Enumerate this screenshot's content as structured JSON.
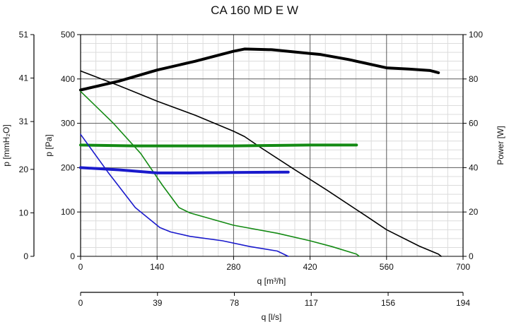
{
  "chart_data": {
    "type": "line",
    "title": "CA 160 MD E W",
    "x_primary": {
      "label": "q [m³/h]",
      "range": [
        0,
        700
      ],
      "ticks": [
        0,
        140,
        280,
        420,
        560,
        700
      ]
    },
    "x_secondary": {
      "label": "q [l/s]",
      "range": [
        0,
        194
      ],
      "ticks": [
        0,
        39,
        78,
        117,
        156,
        194
      ]
    },
    "y_pressure_pa": {
      "label": "p [Pa]",
      "range": [
        0,
        500
      ],
      "ticks": [
        0,
        100,
        200,
        300,
        400,
        500
      ]
    },
    "y_pressure_mmh2o": {
      "label": "p [mmH₂O]",
      "range": [
        0,
        51
      ],
      "ticks": [
        0,
        10,
        20,
        31,
        41,
        51
      ],
      "tick_labels": [
        "0",
        "10",
        "20",
        "31",
        "41",
        "51"
      ]
    },
    "y_power": {
      "label": "Power [W]",
      "range": [
        0,
        100
      ],
      "ticks": [
        0,
        20,
        40,
        60,
        80,
        100
      ]
    },
    "grid": true,
    "series": [
      {
        "name": "pressure-high",
        "axis": "pa",
        "color": "#000000",
        "width": 1.6,
        "x": [
          0,
          70,
          140,
          210,
          280,
          300,
          330,
          390,
          450,
          520,
          560,
          620,
          655,
          660
        ],
        "y": [
          418,
          385,
          350,
          318,
          282,
          270,
          245,
          197,
          150,
          93,
          60,
          23,
          5,
          0
        ]
      },
      {
        "name": "power-high",
        "axis": "power",
        "color": "#000000",
        "width": 4,
        "x": [
          0,
          70,
          140,
          210,
          280,
          300,
          330,
          350,
          420,
          440,
          490,
          560,
          600,
          640,
          655
        ],
        "y": [
          75,
          79,
          84,
          88,
          92.5,
          93.5,
          93.3,
          93.2,
          91.5,
          91,
          88.8,
          85,
          84.5,
          83.8,
          82.8
        ]
      },
      {
        "name": "pressure-mid",
        "axis": "pa",
        "color": "#138a13",
        "width": 1.6,
        "x": [
          0,
          60,
          110,
          150,
          180,
          200,
          280,
          360,
          420,
          460,
          505,
          510
        ],
        "y": [
          372,
          300,
          232,
          160,
          110,
          98,
          70,
          52,
          35,
          22,
          5,
          0
        ]
      },
      {
        "name": "power-mid",
        "axis": "power",
        "color": "#138a13",
        "width": 4,
        "x": [
          0,
          100,
          200,
          280,
          350,
          420,
          505
        ],
        "y": [
          50.2,
          49.8,
          49.8,
          49.8,
          50,
          50.2,
          50.2
        ]
      },
      {
        "name": "pressure-low",
        "axis": "pa",
        "color": "#1a1acc",
        "width": 1.6,
        "x": [
          0,
          50,
          100,
          145,
          165,
          200,
          260,
          310,
          360,
          380
        ],
        "y": [
          275,
          190,
          110,
          65,
          55,
          45,
          35,
          22,
          12,
          0
        ]
      },
      {
        "name": "power-low",
        "axis": "power",
        "color": "#1a1acc",
        "width": 4,
        "x": [
          0,
          70,
          140,
          200,
          280,
          380
        ],
        "y": [
          40,
          39,
          37.6,
          37.6,
          37.8,
          38
        ]
      }
    ]
  }
}
